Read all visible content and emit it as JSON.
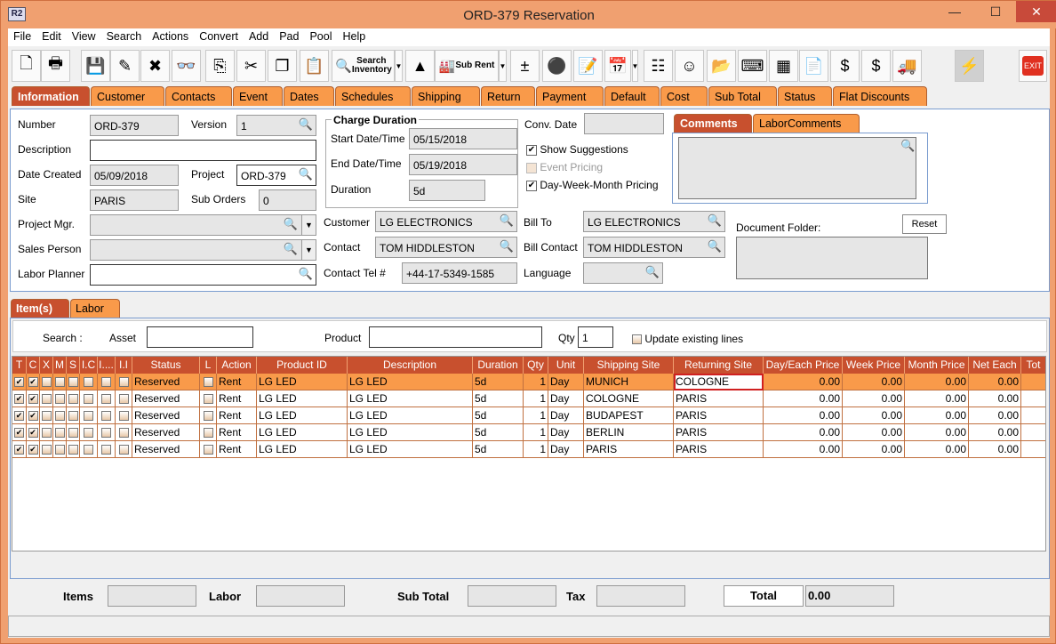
{
  "window": {
    "title": "ORD-379 Reservation",
    "logo": "R2",
    "controls": [
      "minimize",
      "maximize",
      "close"
    ]
  },
  "menu": [
    "File",
    "Edit",
    "View",
    "Search",
    "Actions",
    "Convert",
    "Add",
    "Pad",
    "Pool",
    "Help"
  ],
  "toolbar": [
    {
      "icon": "new-document-icon",
      "glyph": "🗋"
    },
    {
      "icon": "print-icon",
      "glyph": "🖶"
    },
    {
      "icon": "save-icon",
      "glyph": "💾"
    },
    {
      "icon": "edit-pencil-icon",
      "glyph": "✎"
    },
    {
      "icon": "delete-icon",
      "glyph": "✖"
    },
    {
      "icon": "binoculars-icon",
      "glyph": "👓"
    },
    {
      "icon": "copy-to-icon",
      "glyph": "⎘"
    },
    {
      "icon": "cut-icon",
      "glyph": "✂"
    },
    {
      "icon": "copy-icon",
      "glyph": "❐"
    },
    {
      "icon": "paste-icon",
      "glyph": "📋"
    },
    {
      "icon": "search-inventory-icon",
      "glyph": "🔍",
      "label": "Search Inventory"
    },
    {
      "icon": "dropdown-icon",
      "glyph": "▼",
      "dd": true
    },
    {
      "icon": "shapes-icon",
      "glyph": "▲"
    },
    {
      "icon": "sub-rent-icon",
      "glyph": "🏭",
      "label": "Sub Rent"
    },
    {
      "icon": "dropdown-icon",
      "glyph": "▼",
      "dd": true
    },
    {
      "icon": "plus-minus-icon",
      "glyph": "±"
    },
    {
      "icon": "balls-icon",
      "glyph": "⚫"
    },
    {
      "icon": "notepad-icon",
      "glyph": "📝"
    },
    {
      "icon": "calendar-icon",
      "glyph": "📅"
    },
    {
      "icon": "dropdown-icon",
      "glyph": "▼",
      "dd": true
    },
    {
      "icon": "hierarchy-icon",
      "glyph": "☷"
    },
    {
      "icon": "smiley-icon",
      "glyph": "☺"
    },
    {
      "icon": "folder-clock-icon",
      "glyph": "📂"
    },
    {
      "icon": "key-icon",
      "glyph": "⌨"
    },
    {
      "icon": "barrels-icon",
      "glyph": "▦"
    },
    {
      "icon": "form-edit-icon",
      "glyph": "📄"
    },
    {
      "icon": "money-forward-icon",
      "glyph": "$"
    },
    {
      "icon": "money-note-icon",
      "glyph": "$"
    },
    {
      "icon": "truck-icon",
      "glyph": "🚚"
    },
    {
      "icon": "lightning-icon",
      "glyph": "⚡"
    },
    {
      "icon": "exit-icon",
      "glyph": "EXIT"
    }
  ],
  "tabs": [
    "Information",
    "Customer",
    "Contacts",
    "Event",
    "Dates",
    "Schedules",
    "Shipping",
    "Return",
    "Payment",
    "Default",
    "Cost",
    "Sub Total",
    "Status",
    "Flat Discounts"
  ],
  "info": {
    "number_label": "Number",
    "number": "ORD-379",
    "version_label": "Version",
    "version": "1",
    "description_label": "Description",
    "description": "",
    "date_created_label": "Date Created",
    "date_created": "05/09/2018",
    "project_label": "Project",
    "project": "ORD-379",
    "site_label": "Site",
    "site": "PARIS",
    "sub_orders_label": "Sub Orders",
    "sub_orders": "0",
    "project_mgr_label": "Project Mgr.",
    "project_mgr": "",
    "sales_person_label": "Sales Person",
    "sales_person": "",
    "labor_planner_label": "Labor Planner",
    "labor_planner": "",
    "charge_duration_label": "Charge Duration",
    "start_label": "Start Date/Time",
    "start": "05/15/2018",
    "end_label": "End Date/Time",
    "end": "05/19/2018",
    "duration_label": "Duration",
    "duration": "5d",
    "conv_date_label": "Conv. Date",
    "conv_date": "",
    "show_suggestions": {
      "label": "Show Suggestions",
      "checked": true
    },
    "event_pricing": {
      "label": "Event Pricing",
      "checked": false
    },
    "dwm_pricing": {
      "label": "Day-Week-Month Pricing",
      "checked": true
    },
    "customer_label": "Customer",
    "customer": "LG ELECTRONICS",
    "contact_label": "Contact",
    "contact": "TOM HIDDLESTON",
    "contact_tel_label": "Contact Tel #",
    "contact_tel": "+44-17-5349-1585",
    "bill_to_label": "Bill To",
    "bill_to": "LG ELECTRONICS",
    "bill_contact_label": "Bill Contact",
    "bill_contact": "TOM HIDDLESTON",
    "language_label": "Language",
    "language": "",
    "comments_tabs": [
      "Comments",
      "LaborComments"
    ],
    "comments": "",
    "document_folder_label": "Document Folder:",
    "reset_label": "Reset"
  },
  "items_tabs": [
    "Item(s)",
    "Labor"
  ],
  "search": {
    "label": "Search :",
    "asset_label": "Asset",
    "asset": "",
    "product_label": "Product",
    "product": "",
    "qty_label": "Qty",
    "qty": "1",
    "update_label": "Update existing lines"
  },
  "columns": [
    "T",
    "C",
    "X",
    "M",
    "S",
    "I.C",
    "I....",
    "I.I",
    "Status",
    "L",
    "Action",
    "Product ID",
    "Description",
    "Duration",
    "Qty",
    "Unit",
    "Shipping Site",
    "Returning Site",
    "Day/Each Price",
    "Week Price",
    "Month Price",
    "Net Each",
    "Tot"
  ],
  "rows": [
    {
      "status": "Reserved",
      "action": "Rent",
      "product_id": "LG LED",
      "description": "LG LED",
      "duration": "5d",
      "qty": "1",
      "unit": "Day",
      "shipping": "MUNICH",
      "returning": "COLOGNE",
      "day": "0.00",
      "week": "0.00",
      "month": "0.00",
      "net": "0.00",
      "selected": true
    },
    {
      "status": "Reserved",
      "action": "Rent",
      "product_id": "LG LED",
      "description": "LG LED",
      "duration": "5d",
      "qty": "1",
      "unit": "Day",
      "shipping": "COLOGNE",
      "returning": "PARIS",
      "day": "0.00",
      "week": "0.00",
      "month": "0.00",
      "net": "0.00"
    },
    {
      "status": "Reserved",
      "action": "Rent",
      "product_id": "LG LED",
      "description": "LG LED",
      "duration": "5d",
      "qty": "1",
      "unit": "Day",
      "shipping": "BUDAPEST",
      "returning": "PARIS",
      "day": "0.00",
      "week": "0.00",
      "month": "0.00",
      "net": "0.00"
    },
    {
      "status": "Reserved",
      "action": "Rent",
      "product_id": "LG LED",
      "description": "LG LED",
      "duration": "5d",
      "qty": "1",
      "unit": "Day",
      "shipping": "BERLIN",
      "returning": "PARIS",
      "day": "0.00",
      "week": "0.00",
      "month": "0.00",
      "net": "0.00"
    },
    {
      "status": "Reserved",
      "action": "Rent",
      "product_id": "LG LED",
      "description": "LG LED",
      "duration": "5d",
      "qty": "1",
      "unit": "Day",
      "shipping": "PARIS",
      "returning": "PARIS",
      "day": "0.00",
      "week": "0.00",
      "month": "0.00",
      "net": "0.00"
    }
  ],
  "footer": {
    "items_label": "Items",
    "items": "",
    "labor_label": "Labor",
    "labor": "",
    "subtotal_label": "Sub Total",
    "subtotal": "",
    "tax_label": "Tax",
    "tax": "",
    "total_label": "Total",
    "total": "0.00"
  },
  "colors": {
    "accent": "#c8502e",
    "tab": "#f99a4a",
    "frame": "#f0a070"
  }
}
